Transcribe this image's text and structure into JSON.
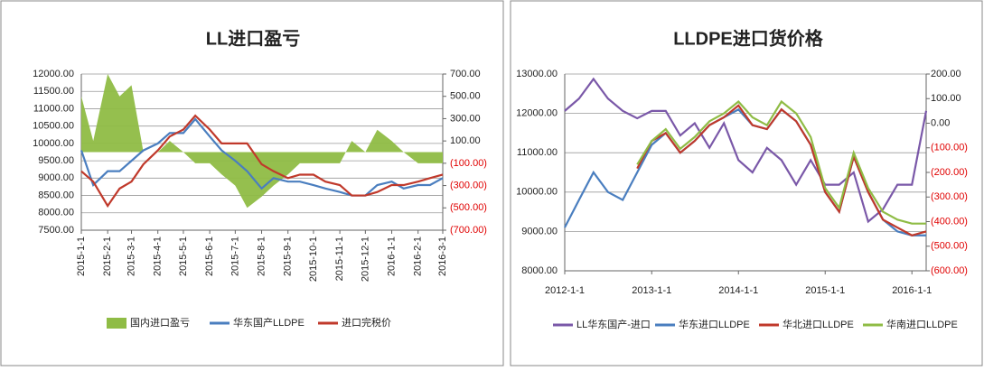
{
  "chart_data": [
    {
      "type": "line",
      "title": "LL进口盈亏",
      "x": [
        "2015-1-1",
        "2015-1-15",
        "2015-2-1",
        "2015-2-15",
        "2015-3-1",
        "2015-3-15",
        "2015-4-1",
        "2015-4-15",
        "2015-5-1",
        "2015-5-15",
        "2015-6-1",
        "2015-6-15",
        "2015-7-1",
        "2015-7-15",
        "2015-8-1",
        "2015-8-15",
        "2015-9-1",
        "2015-9-15",
        "2015-10-1",
        "2015-10-15",
        "2015-11-1",
        "2015-11-15",
        "2015-12-1",
        "2015-12-15",
        "2016-1-1",
        "2016-1-15",
        "2016-2-1",
        "2016-2-15",
        "2016-3-1"
      ],
      "xlim": [
        "2015-1-1",
        "2016-3-1"
      ],
      "xticks": [
        "2015-1-1",
        "2015-2-1",
        "2015-3-1",
        "2015-4-1",
        "2015-5-1",
        "2015-6-1",
        "2015-7-1",
        "2015-8-1",
        "2015-9-1",
        "2015-10-1",
        "2015-11-1",
        "2015-12-1",
        "2016-1-1",
        "2016-2-1",
        "2016-3-1"
      ],
      "ylim": [
        7500,
        12000
      ],
      "yticks": [
        {
          "value": 7500,
          "label": "7500.00"
        },
        {
          "value": 8000,
          "label": "8000.00"
        },
        {
          "value": 8500,
          "label": "8500.00"
        },
        {
          "value": 9000,
          "label": "9000.00"
        },
        {
          "value": 9500,
          "label": "9500.00"
        },
        {
          "value": 10000,
          "label": "10000.00"
        },
        {
          "value": 10500,
          "label": "10500.00"
        },
        {
          "value": 11000,
          "label": "11000.00"
        },
        {
          "value": 11500,
          "label": "11500.00"
        },
        {
          "value": 12000,
          "label": "12000.00"
        }
      ],
      "y2lim": [
        -700,
        700
      ],
      "y2ticks": [
        {
          "value": -700,
          "label": "(700.00)"
        },
        {
          "value": -500,
          "label": "(500.00)"
        },
        {
          "value": -300,
          "label": "(300.00)"
        },
        {
          "value": -100,
          "label": "(100.00)"
        },
        {
          "value": 100,
          "label": "100.00"
        },
        {
          "value": 300,
          "label": "300.00"
        },
        {
          "value": 500,
          "label": "500.00"
        },
        {
          "value": 700,
          "label": "700.00"
        }
      ],
      "grid": true,
      "series": [
        {
          "name": "国内进口盈亏",
          "kind": "area",
          "axis": "y2",
          "color": "#8fbc45",
          "values": [
            500,
            100,
            700,
            500,
            600,
            0,
            0,
            100,
            0,
            -100,
            -100,
            -200,
            -300,
            -500,
            -400,
            -300,
            -200,
            -100,
            -100,
            -100,
            -100,
            100,
            0,
            200,
            100,
            0,
            -100,
            -100,
            -100
          ]
        },
        {
          "name": "华东国产LLDPE",
          "kind": "line",
          "color": "#4a7ebf",
          "values": [
            9800,
            8800,
            9200,
            9200,
            9500,
            9800,
            10000,
            10300,
            10300,
            10700,
            10200,
            9800,
            9500,
            9200,
            8700,
            9000,
            8900,
            8900,
            8800,
            8700,
            8600,
            8500,
            8500,
            8800,
            8900,
            8700,
            8800,
            8800,
            9000
          ]
        },
        {
          "name": "进口完税价",
          "kind": "line",
          "color": "#c0392b",
          "values": [
            9200,
            8900,
            8200,
            8700,
            8900,
            9400,
            9800,
            10200,
            10400,
            10800,
            10400,
            10000,
            10000,
            10000,
            9400,
            9200,
            9000,
            9100,
            9100,
            8900,
            8800,
            8500,
            8500,
            8600,
            8800,
            8800,
            8900,
            9000,
            9100
          ]
        }
      ]
    },
    {
      "type": "line",
      "title": "LLDPE进口货价格",
      "x": [
        "2012-1-1",
        "2012-3-1",
        "2012-5-1",
        "2012-7-1",
        "2012-9-1",
        "2012-11-1",
        "2013-1-1",
        "2013-3-1",
        "2013-5-1",
        "2013-7-1",
        "2013-9-1",
        "2013-11-1",
        "2014-1-1",
        "2014-3-1",
        "2014-5-1",
        "2014-7-1",
        "2014-9-1",
        "2014-11-1",
        "2015-1-1",
        "2015-3-1",
        "2015-5-1",
        "2015-7-1",
        "2015-9-1",
        "2015-11-1",
        "2016-1-1",
        "2016-3-1"
      ],
      "xlim": [
        "2012-1-1",
        "2016-3-1"
      ],
      "xticks": [
        "2012-1-1",
        "2013-1-1",
        "2014-1-1",
        "2015-1-1",
        "2016-1-1"
      ],
      "ylim": [
        8000,
        13000
      ],
      "yticks": [
        {
          "value": 8000,
          "label": "8000.00"
        },
        {
          "value": 9000,
          "label": "9000.00"
        },
        {
          "value": 10000,
          "label": "10000.00"
        },
        {
          "value": 11000,
          "label": "11000.00"
        },
        {
          "value": 12000,
          "label": "12000.00"
        },
        {
          "value": 13000,
          "label": "13000.00"
        }
      ],
      "y2lim": [
        -600,
        200
      ],
      "y2ticks": [
        {
          "value": -600,
          "label": "(600.00)"
        },
        {
          "value": -500,
          "label": "(500.00)"
        },
        {
          "value": -400,
          "label": "(400.00)"
        },
        {
          "value": -300,
          "label": "(300.00)"
        },
        {
          "value": -200,
          "label": "(200.00)"
        },
        {
          "value": -100,
          "label": "(100.00)"
        },
        {
          "value": 0,
          "label": "0.00"
        },
        {
          "value": 100,
          "label": "100.00"
        },
        {
          "value": 200,
          "label": "200.00"
        }
      ],
      "grid": true,
      "series": [
        {
          "name": "LL华东国产-进口",
          "kind": "line",
          "axis": "y2",
          "color": "#7a58a8",
          "values": [
            50,
            100,
            180,
            100,
            50,
            20,
            50,
            50,
            -50,
            0,
            -100,
            0,
            -150,
            -200,
            -100,
            -150,
            -250,
            -150,
            -250,
            -250,
            -200,
            -400,
            -350,
            -250,
            -250,
            50
          ]
        },
        {
          "name": "华东进口LLDPE",
          "kind": "line",
          "color": "#4a7ebf",
          "values": [
            9100,
            9800,
            10500,
            10000,
            9800,
            10500,
            11200,
            11500,
            11000,
            11300,
            11700,
            11900,
            12100,
            11700,
            11600,
            12100,
            11800,
            11200,
            10000,
            9500,
            10900,
            10000,
            9300,
            9000,
            8900,
            8900
          ]
        },
        {
          "name": "华北进口LLDPE",
          "kind": "line",
          "color": "#c0392b",
          "values": [
            null,
            null,
            null,
            null,
            null,
            10600,
            11300,
            11500,
            11000,
            11300,
            11700,
            11900,
            12200,
            11700,
            11600,
            12100,
            11800,
            11200,
            10000,
            9500,
            10900,
            10000,
            9300,
            9100,
            8900,
            9000
          ]
        },
        {
          "name": "华南进口LLDPE",
          "kind": "line",
          "color": "#8fbc45",
          "values": [
            null,
            null,
            null,
            null,
            null,
            10700,
            11300,
            11600,
            11100,
            11400,
            11800,
            12000,
            12300,
            11900,
            11700,
            12300,
            12000,
            11400,
            10100,
            9600,
            11000,
            10100,
            9500,
            9300,
            9200,
            9200
          ]
        }
      ]
    }
  ]
}
